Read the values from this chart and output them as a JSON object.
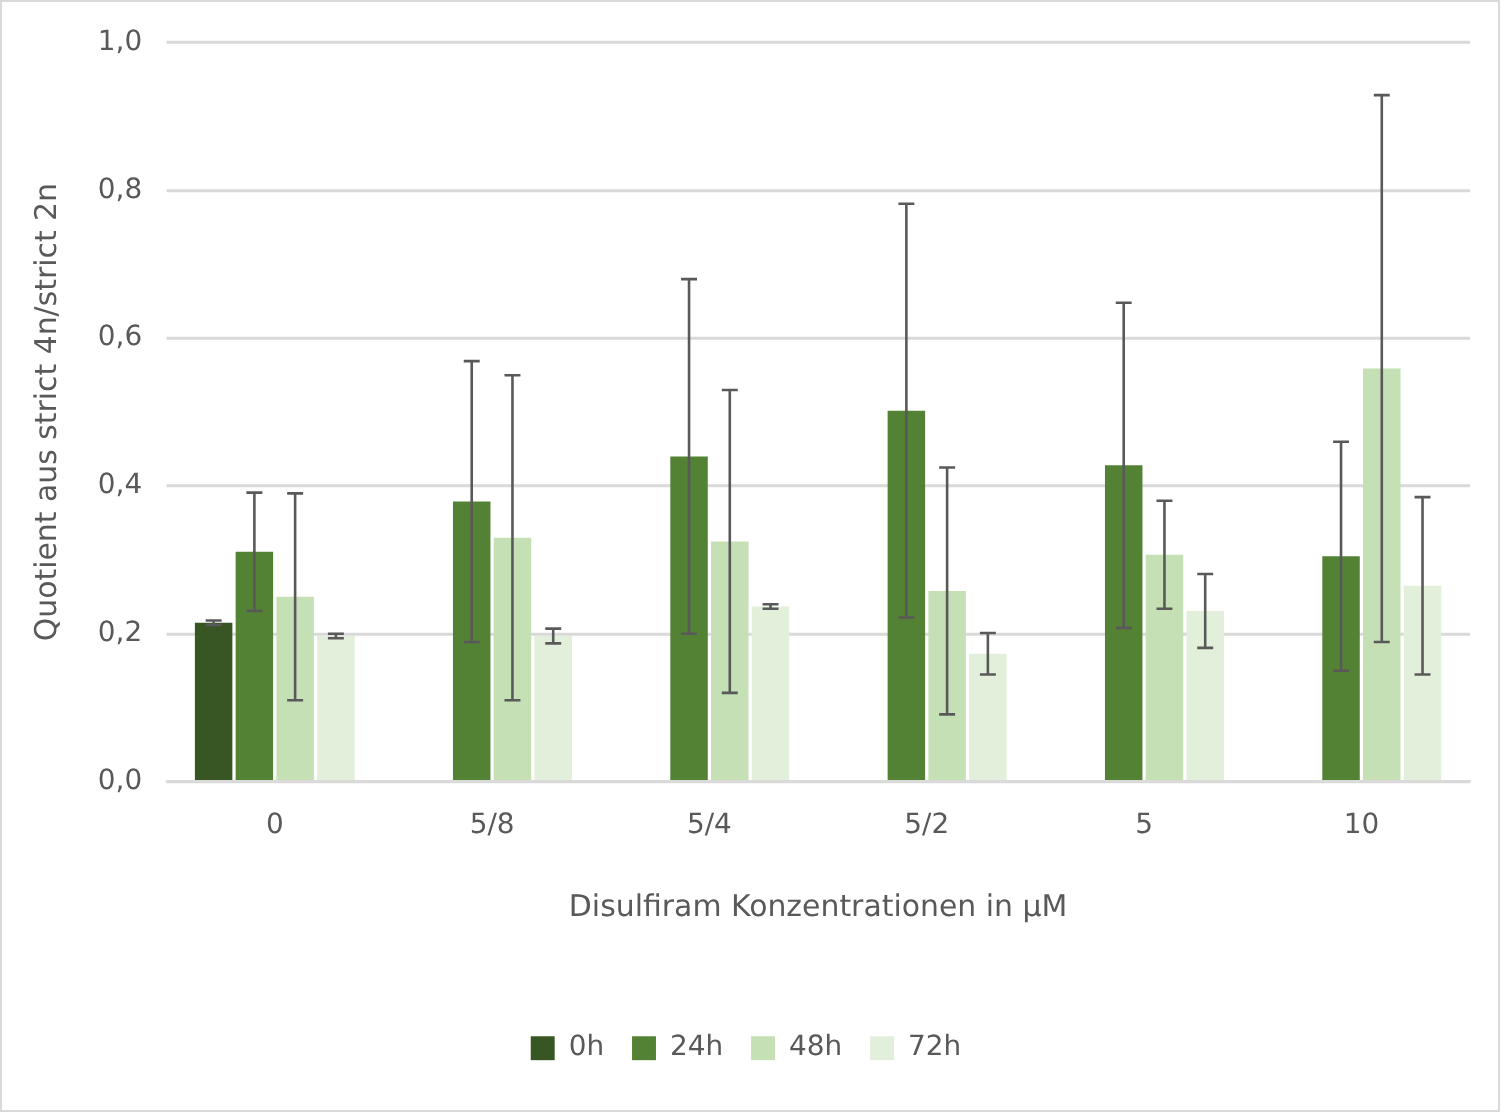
{
  "chart_data": {
    "type": "bar",
    "xlabel": "Disulfiram Konzentrationen in µM",
    "ylabel": "Quotient aus strict 4n/strict 2n",
    "categories": [
      "0",
      "5/8",
      "5/4",
      "5/2",
      "5",
      "10"
    ],
    "ylim": [
      0,
      1
    ],
    "yticks": [
      {
        "value": 0,
        "label": "0,0"
      },
      {
        "value": 0.2,
        "label": "0,2"
      },
      {
        "value": 0.4,
        "label": "0,4"
      },
      {
        "value": 0.6,
        "label": "0,6"
      },
      {
        "value": 0.8,
        "label": "0,8"
      },
      {
        "value": 1,
        "label": "1,0"
      }
    ],
    "grid": "y",
    "legend": "bottom",
    "series": [
      {
        "name": "0h",
        "color": "#375623",
        "values": [
          0.215,
          null,
          null,
          null,
          null,
          null
        ],
        "errors": [
          0.003,
          null,
          null,
          null,
          null,
          null
        ]
      },
      {
        "name": "24h",
        "color": "#548235",
        "values": [
          0.311,
          0.379,
          0.44,
          0.502,
          0.428,
          0.305
        ],
        "errors": [
          0.08,
          0.19,
          0.24,
          0.28,
          0.22,
          0.155
        ]
      },
      {
        "name": "48h",
        "color": "#c5e0b4",
        "values": [
          0.25,
          0.33,
          0.325,
          0.258,
          0.307,
          0.559
        ],
        "errors": [
          0.14,
          0.22,
          0.205,
          0.167,
          0.073,
          0.37
        ]
      },
      {
        "name": "72h",
        "color": "#e2efda",
        "values": [
          0.197,
          0.197,
          0.237,
          0.173,
          0.231,
          0.265
        ],
        "errors": [
          0.003,
          0.01,
          0.003,
          0.028,
          0.05,
          0.12
        ]
      }
    ]
  }
}
